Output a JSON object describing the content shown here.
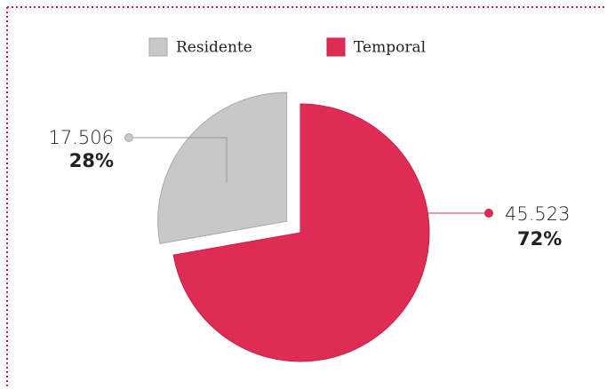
{
  "chart_data": {
    "type": "pie",
    "categories": [
      "Residente",
      "Temporal"
    ],
    "values": [
      17506,
      45523
    ],
    "value_labels": [
      "17.506",
      "45.523"
    ],
    "percent_labels": [
      "28%",
      "72%"
    ],
    "colors": [
      "#c8c8c8",
      "#de2c55"
    ]
  }
}
